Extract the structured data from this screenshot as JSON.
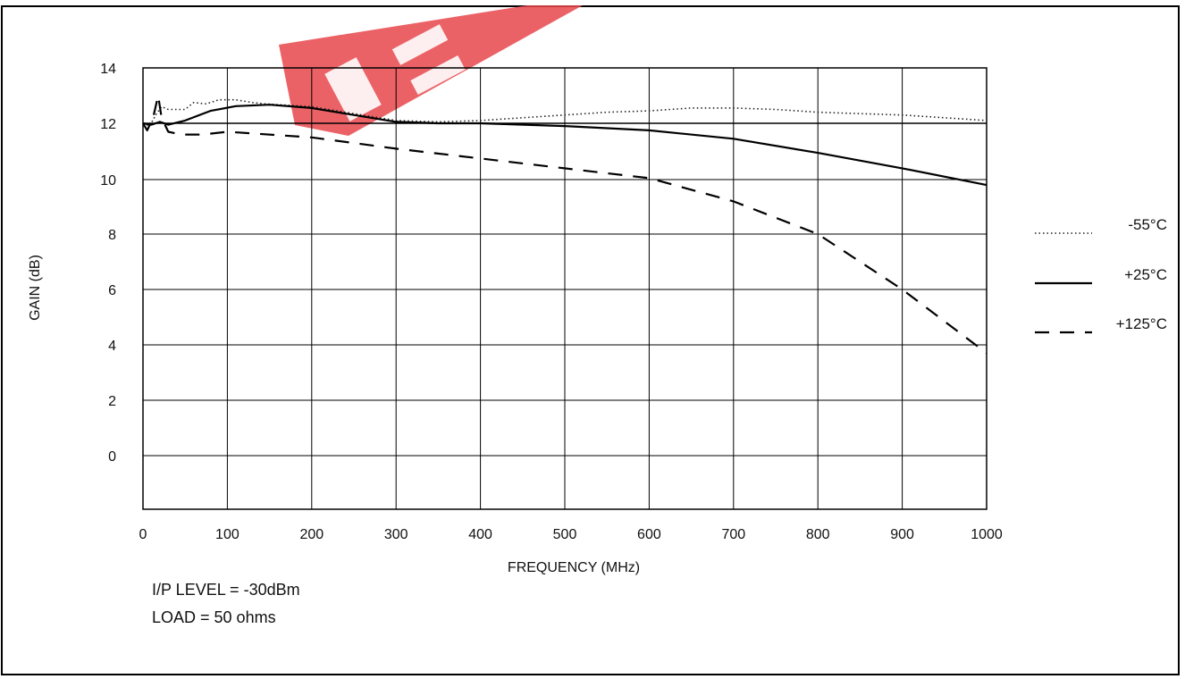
{
  "chart_data": {
    "type": "line",
    "xlabel": "FREQUENCY (MHz)",
    "ylabel": "GAIN (dB)",
    "xlim": [
      0,
      1000
    ],
    "x_ticks": [
      "0",
      "100",
      "200",
      "300",
      "400",
      "500",
      "600",
      "700",
      "800",
      "900",
      "1000"
    ],
    "y_ticks": [
      "0",
      "2",
      "4",
      "6",
      "8",
      "10",
      "12",
      "14"
    ],
    "grid": true,
    "legend_position": "right",
    "series": [
      {
        "name": "-55°C",
        "style": "dotted",
        "points": [
          [
            0,
            12
          ],
          [
            8,
            11.9
          ],
          [
            15,
            12.3
          ],
          [
            22,
            12.6
          ],
          [
            30,
            12.5
          ],
          [
            50,
            12.5
          ],
          [
            60,
            12.75
          ],
          [
            75,
            12.7
          ],
          [
            90,
            12.85
          ],
          [
            110,
            12.85
          ],
          [
            130,
            12.75
          ],
          [
            145,
            12.7
          ],
          [
            200,
            12.6
          ],
          [
            250,
            12.35
          ],
          [
            300,
            12.1
          ],
          [
            350,
            12.05
          ],
          [
            400,
            12.1
          ],
          [
            450,
            12.2
          ],
          [
            500,
            12.3
          ],
          [
            550,
            12.4
          ],
          [
            600,
            12.45
          ],
          [
            650,
            12.55
          ],
          [
            700,
            12.55
          ],
          [
            750,
            12.5
          ],
          [
            800,
            12.4
          ],
          [
            850,
            12.35
          ],
          [
            900,
            12.3
          ],
          [
            950,
            12.2
          ],
          [
            1000,
            12.1
          ]
        ]
      },
      {
        "name": "+25°C",
        "style": "solid",
        "points": [
          [
            0,
            12
          ],
          [
            10,
            11.95
          ],
          [
            20,
            12.05
          ],
          [
            30,
            11.95
          ],
          [
            50,
            12.1
          ],
          [
            80,
            12.45
          ],
          [
            110,
            12.62
          ],
          [
            150,
            12.67
          ],
          [
            200,
            12.55
          ],
          [
            250,
            12.3
          ],
          [
            300,
            12.05
          ],
          [
            350,
            12
          ],
          [
            400,
            12
          ],
          [
            500,
            11.9
          ],
          [
            600,
            11.75
          ],
          [
            700,
            11.45
          ],
          [
            800,
            10.95
          ],
          [
            900,
            10.4
          ],
          [
            1000,
            9.8
          ]
        ]
      },
      {
        "name": "+125°C",
        "style": "dashed",
        "points": [
          [
            0,
            12
          ],
          [
            5,
            11.75
          ],
          [
            12,
            12.2
          ],
          [
            18,
            13.0
          ],
          [
            22,
            12.2
          ],
          [
            30,
            11.7
          ],
          [
            45,
            11.6
          ],
          [
            70,
            11.6
          ],
          [
            100,
            11.7
          ],
          [
            200,
            11.5
          ],
          [
            300,
            11.1
          ],
          [
            400,
            10.75
          ],
          [
            500,
            10.4
          ],
          [
            600,
            10.05
          ],
          [
            700,
            9.2
          ],
          [
            800,
            8.0
          ],
          [
            900,
            6.0
          ],
          [
            1000,
            3.7
          ]
        ]
      },
      {
        "name": "",
        "style": "solid-thin",
        "points": [
          [
            0,
            12
          ],
          [
            1000,
            12
          ]
        ]
      }
    ]
  },
  "notes": {
    "ip_level": "I/P LEVEL = -30dBm",
    "load": "LOAD = 50 ohms"
  },
  "legend": [
    {
      "label": "-55°C",
      "style": "dotted"
    },
    {
      "label": "+25°C",
      "style": "solid"
    },
    {
      "label": "+125°C",
      "style": "dashed"
    }
  ],
  "watermark": {
    "color": "#e8474c"
  }
}
